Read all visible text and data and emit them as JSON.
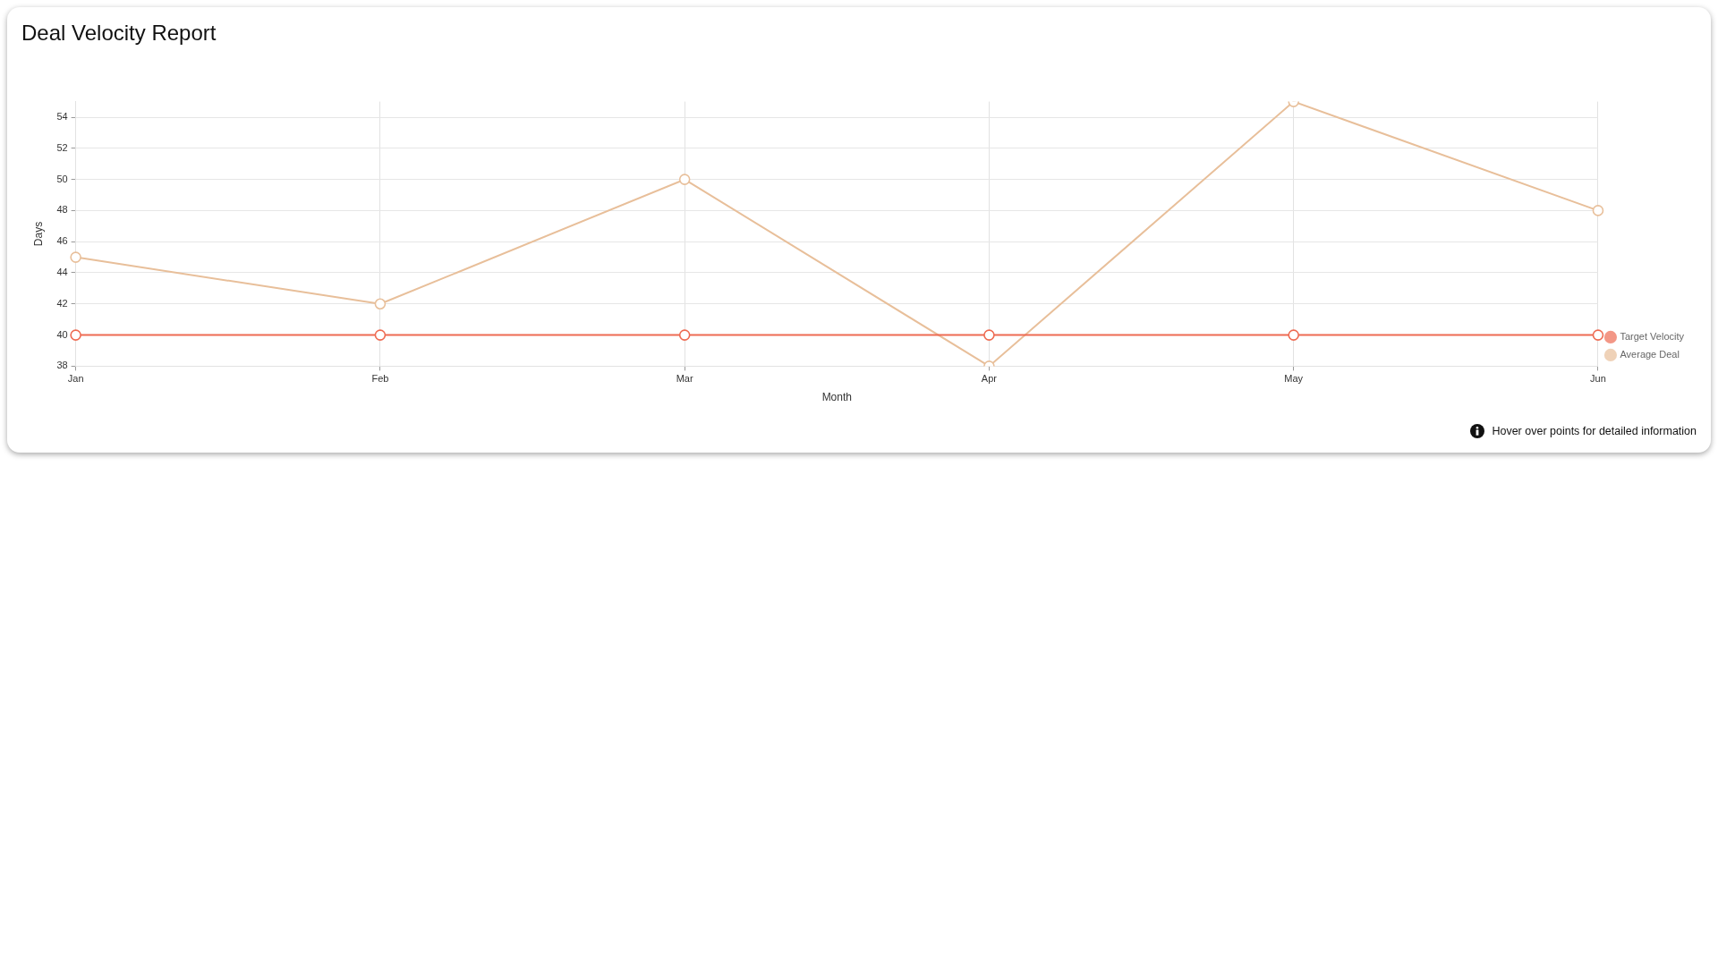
{
  "chart_data": {
    "type": "line",
    "title": "Deal Velocity Report",
    "xlabel": "Month",
    "ylabel": "Days",
    "categories": [
      "Jan",
      "Feb",
      "Mar",
      "Apr",
      "May",
      "Jun"
    ],
    "series": [
      {
        "name": "Target Velocity",
        "color": "#ee6b52",
        "values": [
          40,
          40,
          40,
          40,
          40,
          40
        ]
      },
      {
        "name": "Average Deal",
        "color": "#e8bf9a",
        "values": [
          45,
          42,
          50,
          38,
          55,
          48
        ]
      }
    ],
    "ylim": [
      38,
      55
    ],
    "yticks": [
      38,
      40,
      42,
      44,
      46,
      48,
      50,
      52,
      54
    ],
    "grid": true,
    "legend": "right",
    "marker": "circle",
    "line_style": "solid",
    "annotations": [
      "Hover over points for detailed information"
    ]
  }
}
